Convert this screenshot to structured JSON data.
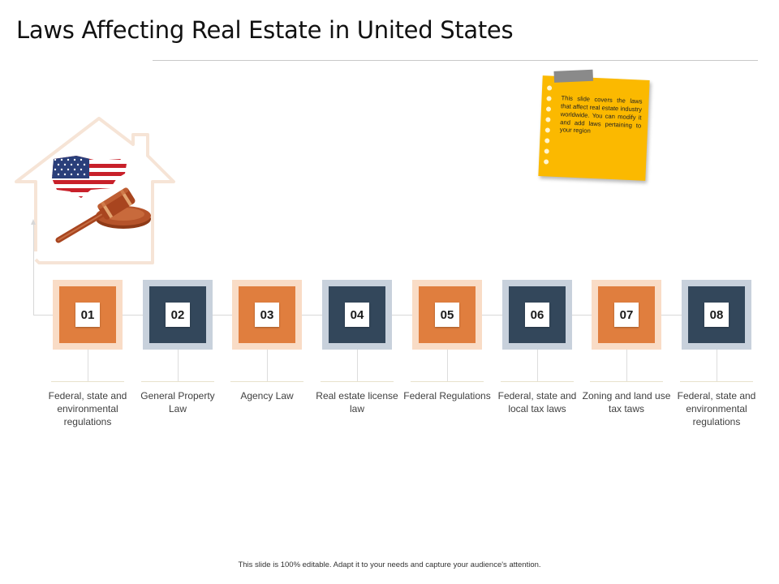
{
  "slide": {
    "title": "Laws Affecting Real Estate in United States",
    "footer": "This slide is 100% editable. Adapt it to your needs and capture your audience's attention."
  },
  "note": {
    "text": "This slide covers the laws that affect real estate industry worldwide. You can modify it and add laws pertaining to your region"
  },
  "illustration": {
    "icons": [
      "house-outline-icon",
      "us-flag-map-icon",
      "gavel-icon"
    ],
    "colors": {
      "house_outline": "#f6e4d6",
      "flag_red": "#c8202a",
      "flag_blue": "#2a3f7a",
      "gavel_wood": "#a8451f"
    }
  },
  "steps": [
    {
      "number": "01",
      "label": "Federal, state and environmental regulations",
      "style": "orange"
    },
    {
      "number": "02",
      "label": "General Property Law",
      "style": "navy"
    },
    {
      "number": "03",
      "label": "Agency Law",
      "style": "orange"
    },
    {
      "number": "04",
      "label": "Real estate license law",
      "style": "navy"
    },
    {
      "number": "05",
      "label": "Federal Regulations",
      "style": "orange"
    },
    {
      "number": "06",
      "label": "Federal, state and local tax laws",
      "style": "navy"
    },
    {
      "number": "07",
      "label": "Zoning and land use tax taws",
      "style": "orange"
    },
    {
      "number": "08",
      "label": "Federal, state and environmental regulations",
      "style": "navy"
    }
  ],
  "colors": {
    "orange": "#e07e3e",
    "orange_light": "#f9dcc6",
    "navy": "#33475b",
    "navy_light": "#c8d1dc",
    "note_yellow": "#fbb900"
  }
}
